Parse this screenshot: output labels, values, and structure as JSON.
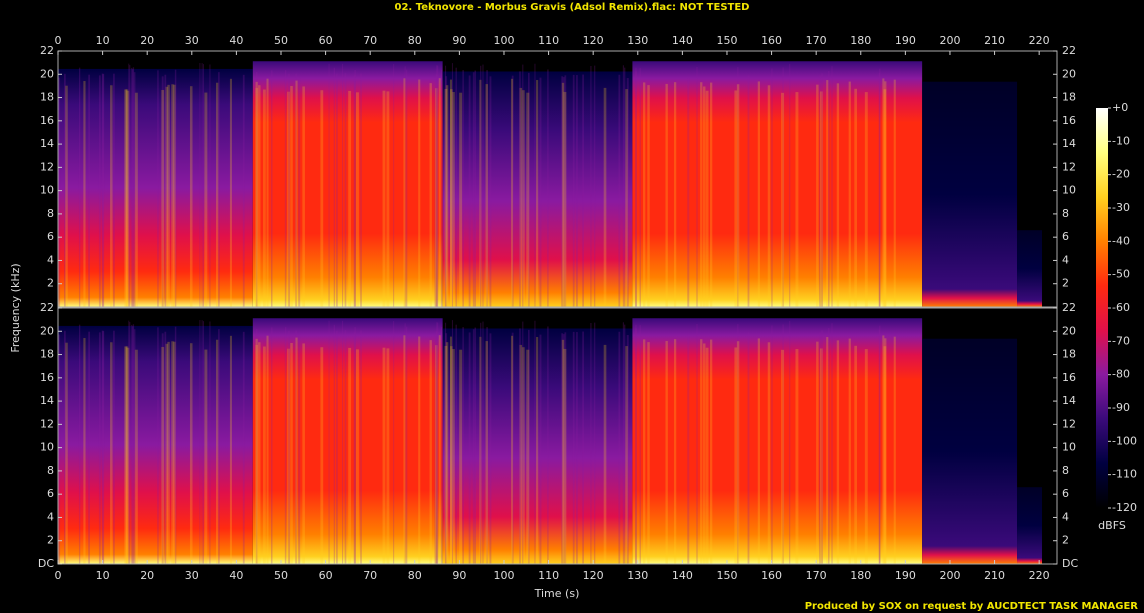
{
  "chart_data": {
    "type": "spectrogram",
    "title": "02. Teknovore - Morbus Gravis (Adsol Remix).flac: NOT TESTED",
    "x_label": "Time (s)",
    "y_label": "Frequency (kHz)",
    "xlim": [
      0,
      224
    ],
    "xticks": [
      0,
      10,
      20,
      30,
      40,
      50,
      60,
      70,
      80,
      90,
      100,
      110,
      120,
      130,
      140,
      150,
      160,
      170,
      180,
      190,
      200,
      210,
      220
    ],
    "channels": [
      {
        "ylim": [
          0,
          22
        ],
        "yticks": [
          2,
          4,
          6,
          8,
          10,
          12,
          14,
          16,
          18,
          20,
          22
        ]
      },
      {
        "ylim": [
          0,
          22
        ],
        "yticks": [
          {
            "value": 0,
            "label": "DC"
          },
          2,
          4,
          6,
          8,
          10,
          12,
          14,
          16,
          18,
          20,
          22
        ]
      }
    ],
    "colorbar": {
      "label": "dBFS",
      "lim": [
        0,
        -120
      ],
      "ticks": [
        {
          "value": 0,
          "label": "+0"
        },
        -10,
        -20,
        -30,
        -40,
        -50,
        -60,
        -70,
        -80,
        -90,
        -100,
        -110,
        -120
      ],
      "colors": [
        "#ffffff",
        "#ffff80",
        "#ffd020",
        "#ff8000",
        "#ff2a10",
        "#e0104a",
        "#8a1aa0",
        "#3a0a7a",
        "#000040",
        "#000000"
      ]
    }
  },
  "footer": "Produced by SOX on request by AUCDTECT TASK MANAGER"
}
